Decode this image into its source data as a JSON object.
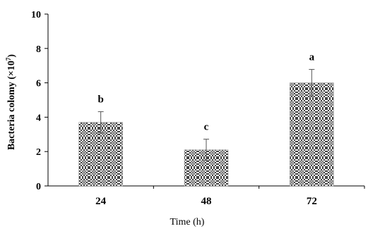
{
  "chart_data": {
    "type": "bar",
    "categories": [
      "24",
      "48",
      "72"
    ],
    "values": [
      3.7,
      2.1,
      6.0
    ],
    "error": [
      0.62,
      0.62,
      0.78
    ],
    "significance_labels": [
      "b",
      "c",
      "a"
    ],
    "xlabel": "Time (h)",
    "ylabel": {
      "main": "Bacteria colomy (×10",
      "exp": "7",
      "close": ")"
    },
    "ylim": [
      0,
      10
    ],
    "yticks": [
      "0",
      "2",
      "4",
      "6",
      "8",
      "10"
    ],
    "grid": false,
    "bar_color": "#a8a8a8"
  }
}
